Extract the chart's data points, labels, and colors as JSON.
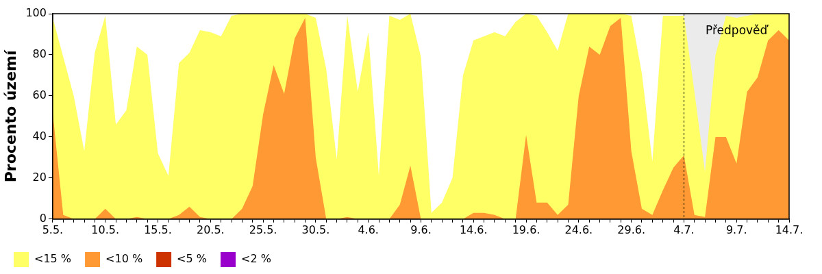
{
  "chart_data": {
    "type": "area",
    "ylabel": "Procento území",
    "categories": [
      "5.5.",
      null,
      null,
      null,
      null,
      "10.5.",
      null,
      null,
      null,
      null,
      "15.5.",
      null,
      null,
      null,
      null,
      "20.5.",
      null,
      null,
      null,
      null,
      "25.5.",
      null,
      null,
      null,
      null,
      "30.5.",
      null,
      null,
      null,
      null,
      "4.6.",
      null,
      null,
      null,
      null,
      "9.6.",
      null,
      null,
      null,
      null,
      "14.6.",
      null,
      null,
      null,
      null,
      "19.6.",
      null,
      null,
      null,
      null,
      "24.6.",
      null,
      null,
      null,
      null,
      "29.6.",
      null,
      null,
      null,
      null,
      "4.7.",
      null,
      null,
      null,
      null,
      "9.7.",
      null,
      null,
      null,
      null,
      "14.7."
    ],
    "series": [
      {
        "name": "<15 %",
        "color": "#ffff66",
        "values": [
          98,
          79,
          60,
          33,
          81,
          99,
          46,
          53,
          84,
          80,
          32,
          21,
          76,
          81,
          92,
          91,
          89,
          99,
          100,
          100,
          100,
          100,
          100,
          100,
          100,
          98,
          73,
          29,
          99,
          62,
          91,
          21,
          99,
          97,
          100,
          79,
          3,
          8,
          20,
          70,
          87,
          89,
          91,
          89,
          96,
          100,
          99,
          91,
          82,
          100,
          100,
          100,
          100,
          100,
          100,
          99,
          71,
          28,
          99,
          99,
          99,
          62,
          23,
          80,
          99,
          98,
          99,
          100,
          100,
          100,
          100
        ]
      },
      {
        "name": "<10 %",
        "color": "#ff9933",
        "values": [
          52,
          2,
          0,
          0,
          0,
          5,
          0,
          0,
          1,
          0,
          0,
          0,
          2,
          6,
          1,
          0,
          0,
          0,
          5,
          16,
          51,
          75,
          61,
          88,
          98,
          30,
          0,
          0,
          1,
          0,
          0,
          0,
          0,
          7,
          26,
          0,
          0,
          0,
          0,
          0,
          3,
          3,
          2,
          0,
          0,
          41,
          8,
          8,
          2,
          7,
          60,
          84,
          80,
          94,
          98,
          33,
          5,
          2,
          14,
          25,
          31,
          2,
          1,
          40,
          40,
          27,
          62,
          69,
          87,
          92,
          87
        ]
      },
      {
        "name": "<5 %",
        "color": "#cc3300",
        "values": [
          null,
          null,
          null,
          null,
          null,
          null,
          null,
          null,
          null,
          null,
          null,
          null,
          null,
          null,
          null,
          null,
          null,
          null,
          null,
          null,
          null,
          null,
          null,
          null,
          null,
          null,
          null,
          null,
          null,
          null,
          null,
          null,
          null,
          null,
          null,
          null,
          null,
          null,
          null,
          null,
          null,
          null,
          null,
          null,
          null,
          null,
          null,
          null,
          null,
          null,
          null,
          null,
          null,
          null,
          null,
          null,
          null,
          null,
          null,
          null,
          null,
          null,
          null,
          null,
          null,
          null,
          null,
          null,
          null,
          null,
          null
        ]
      },
      {
        "name": "<2 %",
        "color": "#9900cc",
        "values": [
          null,
          null,
          null,
          null,
          null,
          null,
          null,
          null,
          null,
          null,
          null,
          null,
          null,
          null,
          null,
          null,
          null,
          null,
          null,
          null,
          null,
          null,
          null,
          null,
          null,
          null,
          null,
          null,
          null,
          null,
          null,
          null,
          null,
          null,
          null,
          null,
          null,
          null,
          null,
          null,
          null,
          null,
          null,
          null,
          null,
          null,
          null,
          null,
          null,
          null,
          null,
          null,
          null,
          null,
          null,
          null,
          null,
          null,
          null,
          null,
          null,
          null,
          null,
          null,
          null,
          null,
          null,
          null,
          null,
          null,
          null
        ]
      }
    ],
    "ylim": [
      0,
      100
    ],
    "yticks": [
      0,
      20,
      40,
      60,
      80,
      100
    ],
    "bands": [
      {
        "axis": "x",
        "from": "4.7.",
        "to": "14.7.",
        "label": "Předpověď",
        "color": "#ebebeb"
      }
    ],
    "ref_lines": [
      {
        "axis": "x",
        "value": "4.7.",
        "line_style": "dashed",
        "color": "#000000"
      }
    ],
    "grid": false,
    "legend": "bottom left",
    "marker": "none"
  }
}
